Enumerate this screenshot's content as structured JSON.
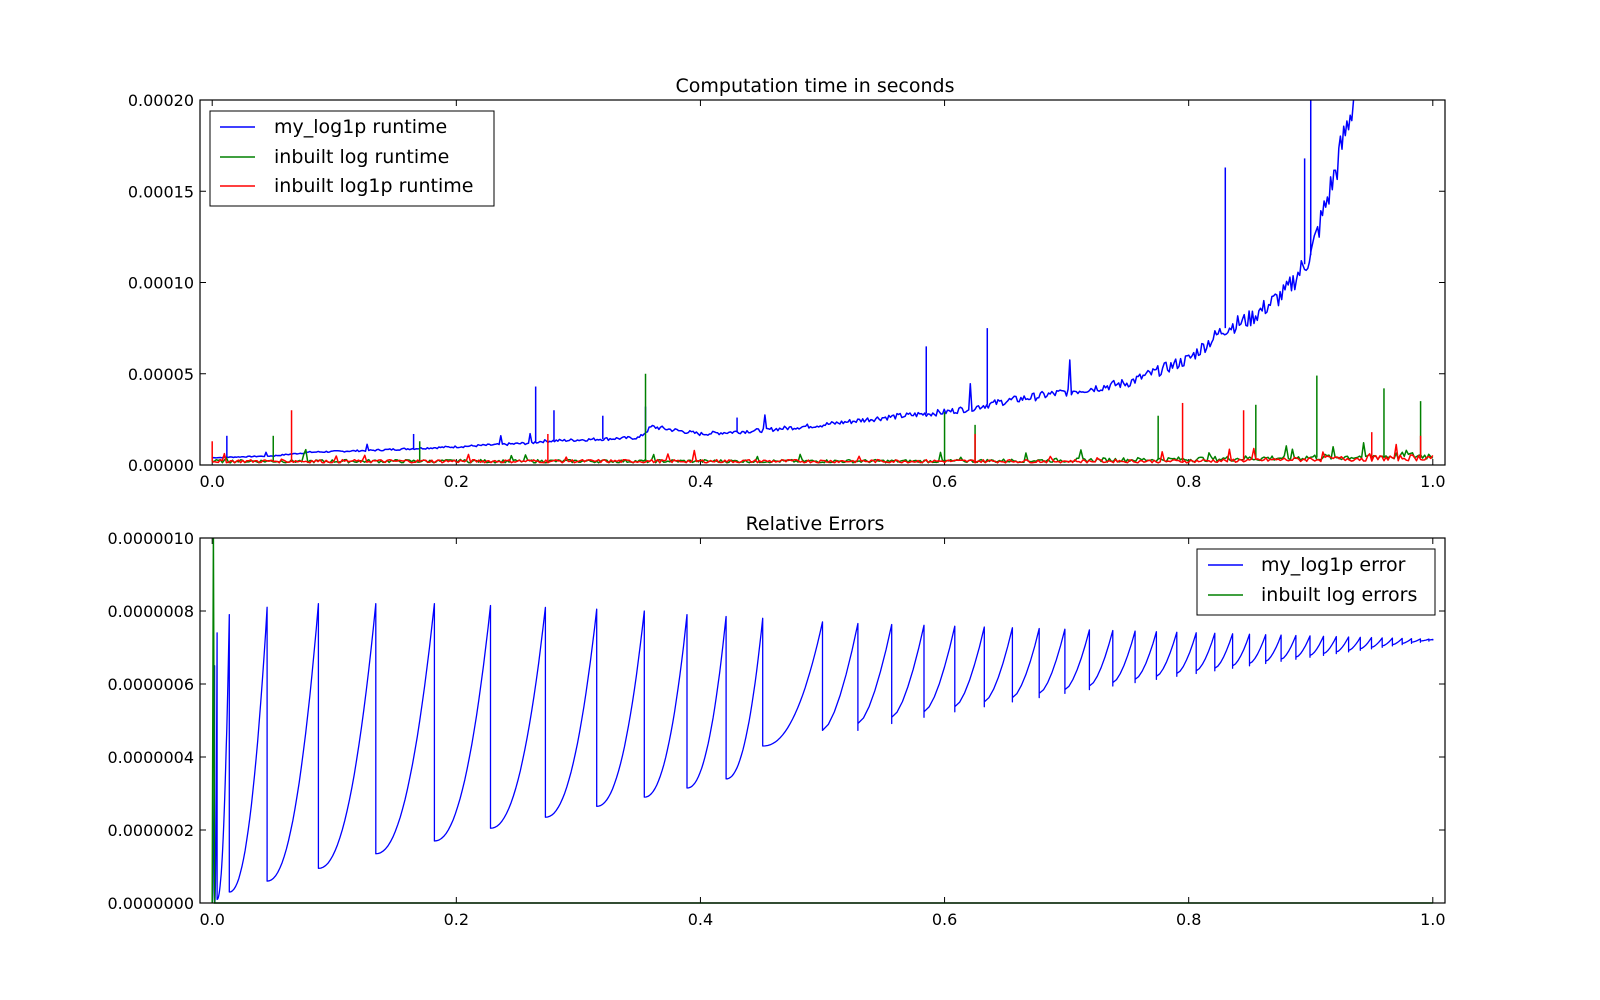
{
  "chart_data": [
    {
      "type": "line",
      "title": "Computation time in seconds",
      "xlabel": "",
      "ylabel": "",
      "xlim": [
        -0.01,
        1.01
      ],
      "ylim": [
        0,
        0.0002
      ],
      "x_ticks": [
        "0.0",
        "0.2",
        "0.4",
        "0.6",
        "0.8",
        "1.0"
      ],
      "y_ticks": [
        "0.00000",
        "0.00005",
        "0.00010",
        "0.00015",
        "0.00020"
      ],
      "grid": false,
      "legend_position": "top-left",
      "series": [
        {
          "name": "my_log1p runtime",
          "color": "#0000ff",
          "x": [
            0.0,
            0.05,
            0.08,
            0.13,
            0.2,
            0.26,
            0.27,
            0.35,
            0.36,
            0.4,
            0.45,
            0.5,
            0.55,
            0.6,
            0.62,
            0.65,
            0.7,
            0.75,
            0.8,
            0.83,
            0.85,
            0.88,
            0.9,
            0.92,
            0.935
          ],
          "values": [
            4e-06,
            5e-06,
            7e-06,
            8e-06,
            1e-05,
            1.2e-05,
            1.3e-05,
            1.5e-05,
            2.1e-05,
            1.7e-05,
            1.9e-05,
            2.2e-05,
            2.6e-05,
            2.9e-05,
            3.1e-05,
            3.5e-05,
            4e-05,
            4.5e-05,
            5.8e-05,
            7.5e-05,
            8e-05,
            9.5e-05,
            0.000115,
            0.00016,
            0.0002
          ],
          "spikes": [
            {
              "x": 0.012,
              "y": 1.6e-05
            },
            {
              "x": 0.165,
              "y": 1.7e-05
            },
            {
              "x": 0.265,
              "y": 4.3e-05
            },
            {
              "x": 0.28,
              "y": 3e-05
            },
            {
              "x": 0.32,
              "y": 2.7e-05
            },
            {
              "x": 0.355,
              "y": 3.2e-05
            },
            {
              "x": 0.43,
              "y": 2.6e-05
            },
            {
              "x": 0.585,
              "y": 6.5e-05
            },
            {
              "x": 0.635,
              "y": 7.5e-05
            },
            {
              "x": 0.83,
              "y": 0.000163
            },
            {
              "x": 0.9,
              "y": 0.000205
            },
            {
              "x": 0.895,
              "y": 0.000168
            }
          ]
        },
        {
          "name": "inbuilt log runtime",
          "color": "#008000",
          "x": [
            0.0,
            0.2,
            0.4,
            0.6,
            0.8,
            1.0
          ],
          "values": [
            2e-06,
            2e-06,
            2e-06,
            2e-06,
            3e-06,
            5e-06
          ],
          "spikes": [
            {
              "x": 0.05,
              "y": 1.6e-05
            },
            {
              "x": 0.17,
              "y": 1.3e-05
            },
            {
              "x": 0.355,
              "y": 5e-05
            },
            {
              "x": 0.6,
              "y": 2.9e-05
            },
            {
              "x": 0.625,
              "y": 2.2e-05
            },
            {
              "x": 0.775,
              "y": 2.7e-05
            },
            {
              "x": 0.855,
              "y": 3.3e-05
            },
            {
              "x": 0.905,
              "y": 4.9e-05
            },
            {
              "x": 0.96,
              "y": 4.2e-05
            },
            {
              "x": 0.99,
              "y": 3.5e-05
            }
          ]
        },
        {
          "name": "inbuilt log1p runtime",
          "color": "#ff0000",
          "x": [
            0.0,
            0.2,
            0.4,
            0.6,
            0.8,
            1.0
          ],
          "values": [
            2e-06,
            2e-06,
            2e-06,
            2e-06,
            2e-06,
            4e-06
          ],
          "spikes": [
            {
              "x": 0.0,
              "y": 1.3e-05
            },
            {
              "x": 0.065,
              "y": 3e-05
            },
            {
              "x": 0.275,
              "y": 1.7e-05
            },
            {
              "x": 0.625,
              "y": 1.7e-05
            },
            {
              "x": 0.795,
              "y": 3.4e-05
            },
            {
              "x": 0.845,
              "y": 3e-05
            },
            {
              "x": 0.95,
              "y": 1.8e-05
            },
            {
              "x": 0.99,
              "y": 1.6e-05
            }
          ]
        }
      ]
    },
    {
      "type": "line",
      "title": "Relative Errors",
      "xlabel": "",
      "ylabel": "",
      "xlim": [
        -0.01,
        1.01
      ],
      "ylim": [
        0,
        1e-06
      ],
      "x_ticks": [
        "0.0",
        "0.2",
        "0.4",
        "0.6",
        "0.8",
        "1.0"
      ],
      "y_ticks": [
        "0.0000000",
        "0.0000002",
        "0.0000004",
        "0.0000006",
        "0.0000008",
        "0.0000010"
      ],
      "grid": false,
      "legend_position": "top-right",
      "series": [
        {
          "name": "my_log1p error",
          "color": "#0000ff",
          "x": [
            0.0,
            0.002,
            0.004,
            0.014,
            0.045,
            0.087,
            0.134,
            0.182,
            0.228,
            0.273,
            0.315,
            0.354,
            0.389,
            0.421,
            0.451,
            0.5,
            0.6,
            0.7,
            0.8,
            0.9,
            1.0
          ],
          "peaks": [
            6.5e-07,
            7.4e-07,
            7.9e-07,
            8.1e-07,
            8.2e-07,
            8.2e-07,
            8.2e-07,
            8.15e-07,
            8.1e-07,
            8.05e-07,
            8e-07,
            7.9e-07,
            7.85e-07,
            7.8e-07,
            7.7e-07,
            7.6e-07,
            7.45e-07,
            7.3e-07,
            7.22e-07
          ],
          "troughs": [
            0.0,
            0.0,
            1e-08,
            3e-08,
            6e-08,
            9.5e-08,
            1.35e-07,
            1.7e-07,
            2.05e-07,
            2.35e-07,
            2.65e-07,
            2.9e-07,
            3.15e-07,
            3.4e-07,
            4.3e-07,
            5.4e-07,
            6.2e-07,
            6.8e-07,
            7.1e-07,
            7.22e-07
          ]
        },
        {
          "name": "inbuilt log errors",
          "color": "#008000",
          "x": [
            0.0,
            0.001,
            0.002,
            1.0
          ],
          "values": [
            0.0,
            1e-06,
            0.0,
            0.0
          ]
        }
      ]
    }
  ]
}
